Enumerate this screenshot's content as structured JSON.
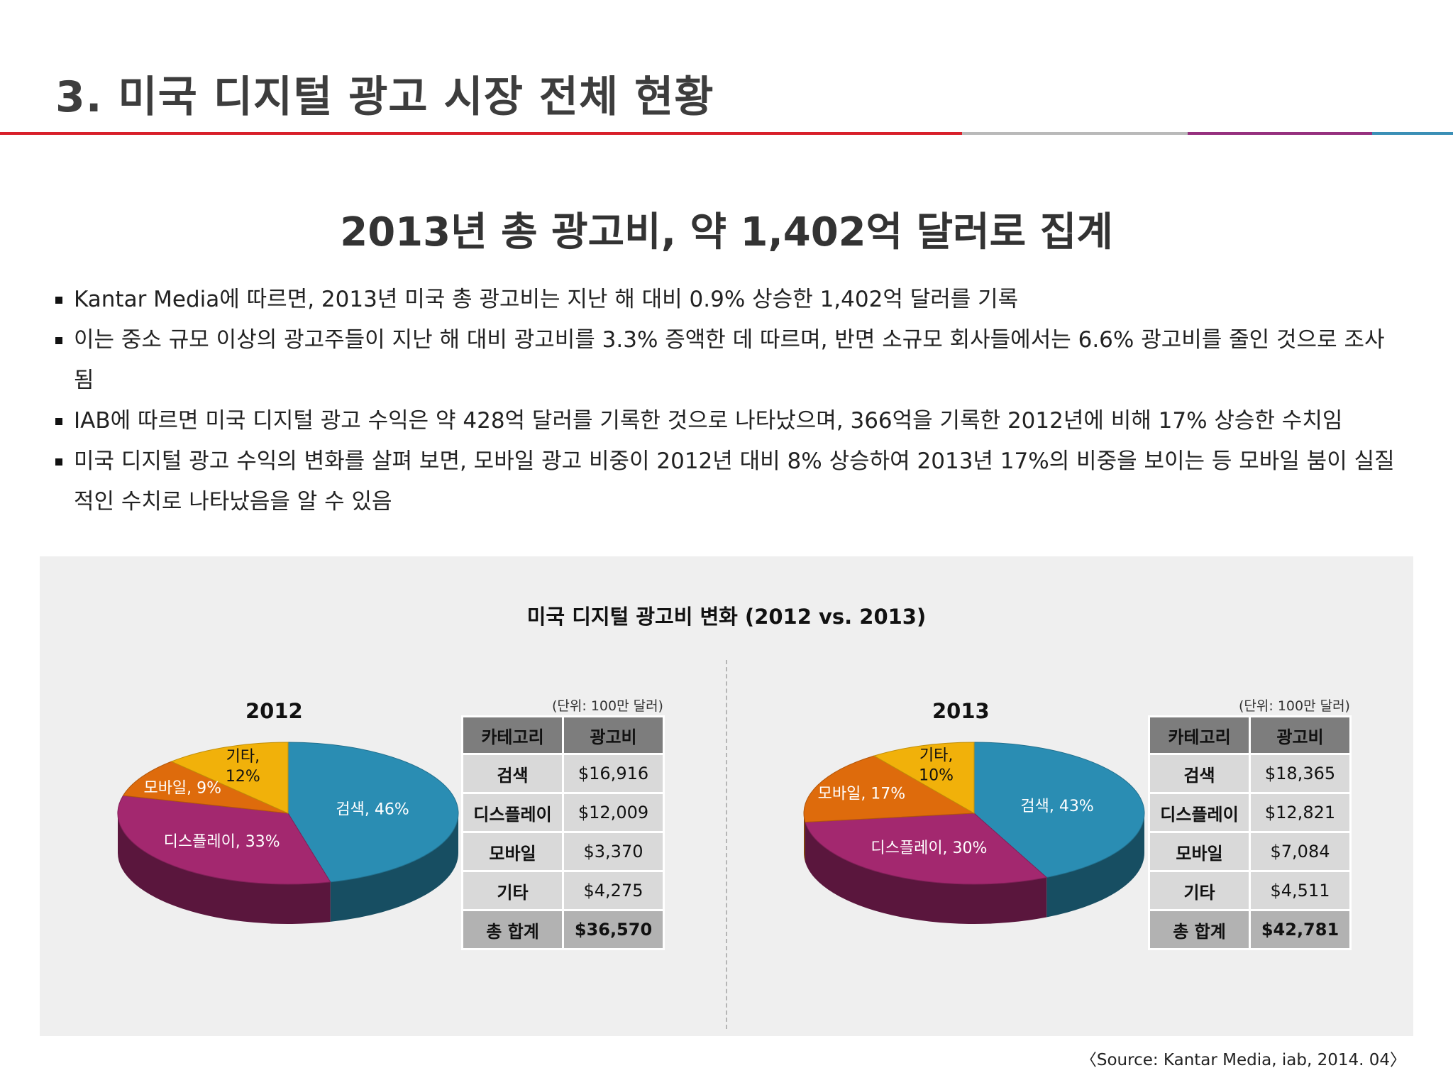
{
  "header": {
    "title": "3. 미국 디지털 광고 시장 전체 현황",
    "rule_colors": [
      "#d81f2a",
      "#b9b9b9",
      "#96307e",
      "#3a8fb6"
    ]
  },
  "subtitle": "2013년 총 광고비, 약 1,402억 달러로 집계",
  "bullets": [
    "Kantar Media에 따르면, 2013년 미국 총 광고비는 지난 해 대비 0.9% 상승한 1,402억 달러를 기록",
    "이는 중소 규모 이상의 광고주들이 지난 해 대비 광고비를 3.3% 증액한 데 따르며, 반면 소규모 회사들에서는 6.6% 광고비를 줄인 것으로 조사됨",
    "IAB에 따르면 미국 디지털 광고 수익은 약 428억 달러를 기록한 것으로 나타났으며, 366억을 기록한 2012년에 비해 17% 상승한 수치임",
    "미국 디지털 광고 수익의 변화를 살펴 보면, 모바일 광고 비중이 2012년 대비 8% 상승하여 2013년 17%의 비중을 보이는 등 모바일 붐이 실질적인 수치로 나타났음을 알 수 있음"
  ],
  "panel": {
    "title": "미국 디지털 광고비 변화 (2012 vs. 2013)",
    "unit_note": "(단위: 100만 달러)",
    "table_headers": [
      "카테고리",
      "광고비"
    ]
  },
  "chart_data": [
    {
      "type": "pie",
      "title": "2012",
      "categories": [
        "검색",
        "디스플레이",
        "모바일",
        "기타"
      ],
      "values": [
        46,
        33,
        9,
        12
      ],
      "labels": [
        "검색, 46%",
        "디스플레이, 33%",
        "모바일, 9%",
        "기타, 12%"
      ],
      "colors": [
        "#2a8db3",
        "#a3286f",
        "#de6b0c",
        "#f1b10a"
      ],
      "table": {
        "rows": [
          {
            "category": "검색",
            "value": "$16,916"
          },
          {
            "category": "디스플레이",
            "value": "$12,009"
          },
          {
            "category": "모바일",
            "value": "$3,370"
          },
          {
            "category": "기타",
            "value": "$4,275"
          }
        ],
        "total": {
          "category": "총 합계",
          "value": "$36,570"
        }
      }
    },
    {
      "type": "pie",
      "title": "2013",
      "categories": [
        "검색",
        "디스플레이",
        "모바일",
        "기타"
      ],
      "values": [
        43,
        30,
        17,
        10
      ],
      "labels": [
        "검색, 43%",
        "디스플레이, 30%",
        "모바일, 17%",
        "기타, 10%"
      ],
      "colors": [
        "#2a8db3",
        "#a3286f",
        "#de6b0c",
        "#f1b10a"
      ],
      "table": {
        "rows": [
          {
            "category": "검색",
            "value": "$18,365"
          },
          {
            "category": "디스플레이",
            "value": "$12,821"
          },
          {
            "category": "모바일",
            "value": "$7,084"
          },
          {
            "category": "기타",
            "value": "$4,511"
          }
        ],
        "total": {
          "category": "총 합계",
          "value": "$42,781"
        }
      }
    }
  ],
  "source": "〈Source: Kantar Media, iab, 2014. 04〉"
}
